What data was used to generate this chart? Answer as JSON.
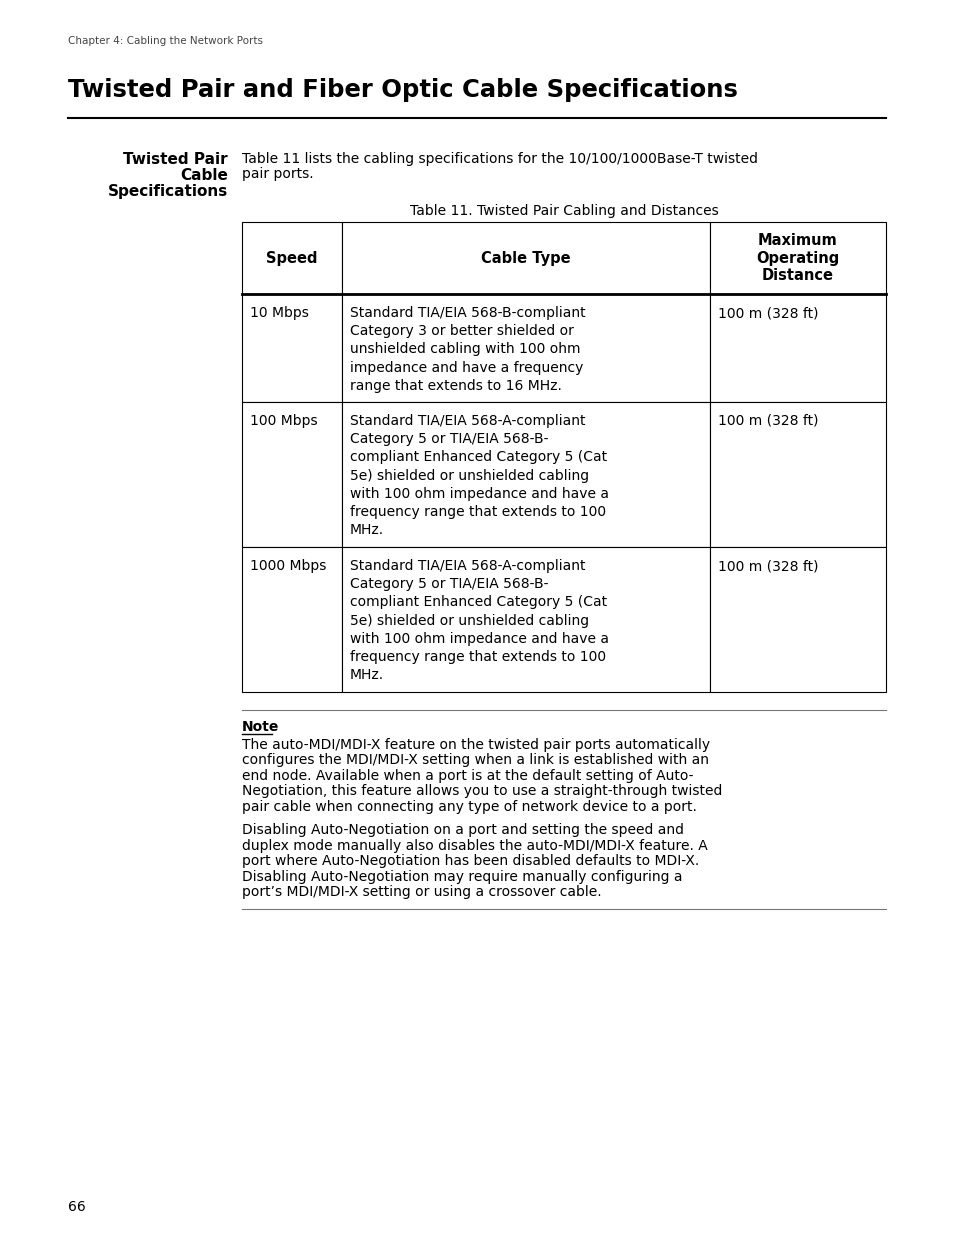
{
  "page_header": "Chapter 4: Cabling the Network Ports",
  "main_title": "Twisted Pair and Fiber Optic Cable Specifications",
  "section_title_line1": "Twisted Pair",
  "section_title_line2": "Cable",
  "section_title_line3": "Specifications",
  "intro_text_line1": "Table 11 lists the cabling specifications for the 10/100/1000Base-T twisted",
  "intro_text_line2": "pair ports.",
  "table_title": "Table 11. Twisted Pair Cabling and Distances",
  "table_headers": [
    "Speed",
    "Cable Type",
    "Maximum\nOperating\nDistance"
  ],
  "table_rows": [
    {
      "speed": "10 Mbps",
      "cable_type": "Standard TIA/EIA 568-B-compliant\nCategory 3 or better shielded or\nunshielded cabling with 100 ohm\nimpedance and have a frequency\nrange that extends to 16 MHz.",
      "distance": "100 m (328 ft)"
    },
    {
      "speed": "100 Mbps",
      "cable_type": "Standard TIA/EIA 568-A-compliant\nCategory 5 or TIA/EIA 568-B-\ncompliant Enhanced Category 5 (Cat\n5e) shielded or unshielded cabling\nwith 100 ohm impedance and have a\nfrequency range that extends to 100\nMHz.",
      "distance": "100 m (328 ft)"
    },
    {
      "speed": "1000 Mbps",
      "cable_type": "Standard TIA/EIA 568-A-compliant\nCategory 5 or TIA/EIA 568-B-\ncompliant Enhanced Category 5 (Cat\n5e) shielded or unshielded cabling\nwith 100 ohm impedance and have a\nfrequency range that extends to 100\nMHz.",
      "distance": "100 m (328 ft)"
    }
  ],
  "note_title": "Note",
  "note_para1_lines": [
    "The auto-MDI/MDI-X feature on the twisted pair ports automatically",
    "configures the MDI/MDI-X setting when a link is established with an",
    "end node. Available when a port is at the default setting of Auto-",
    "Negotiation, this feature allows you to use a straight-through twisted",
    "pair cable when connecting any type of network device to a port."
  ],
  "note_para2_lines": [
    "Disabling Auto-Negotiation on a port and setting the speed and",
    "duplex mode manually also disables the auto-MDI/MDI-X feature. A",
    "port where Auto-Negotiation has been disabled defaults to MDI-X.",
    "Disabling Auto-Negotiation may require manually configuring a",
    "port’s MDI/MDI-X setting or using a crossover cable."
  ],
  "page_number": "66",
  "bg_color": "#ffffff",
  "text_color": "#000000"
}
